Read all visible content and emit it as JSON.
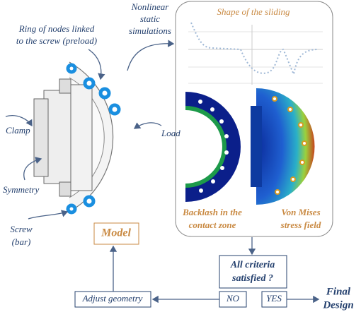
{
  "labels": {
    "ring_of_nodes": [
      "Ring of nodes linked",
      "to the screw (preload)"
    ],
    "simulations": [
      "Nonlinear",
      "static",
      "simulations"
    ],
    "clamp": "Clamp",
    "load": "Load",
    "symmetry": "Symmetry",
    "screw": [
      "Screw",
      "(bar)"
    ]
  },
  "panel": {
    "plot_title": "Shape of the sliding",
    "backlash": [
      "Backlash in the",
      "contact zone"
    ],
    "von_mises": [
      "Von Mises",
      "stress field"
    ]
  },
  "flow": {
    "model": "Model",
    "criteria": [
      "All criteria",
      "satisfied ?"
    ],
    "adjust": "Adjust geometry",
    "no": "NO",
    "yes": "YES",
    "final": [
      "Final",
      "Design"
    ]
  }
}
